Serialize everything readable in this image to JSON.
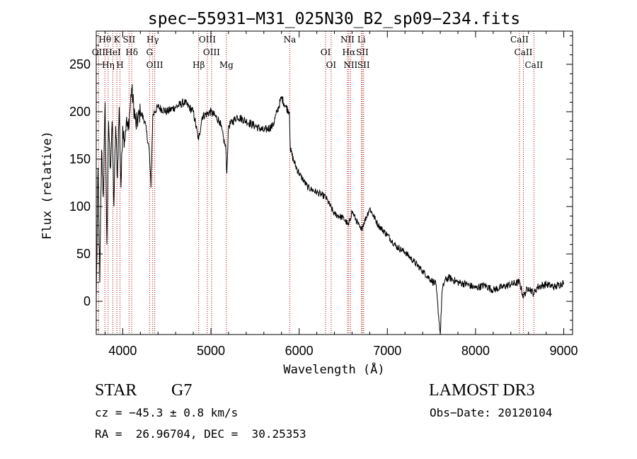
{
  "chart_data": {
    "type": "line",
    "title": "spec−55931−M31_025N30_B2_sp09−234.fits",
    "xlabel": "Wavelength (Å)",
    "ylabel": "Flux (relative)",
    "xlim": [
      3700,
      9100
    ],
    "ylim": [
      -35,
      285
    ],
    "x_ticks": [
      4000,
      5000,
      6000,
      7000,
      8000,
      9000
    ],
    "y_ticks": [
      0,
      50,
      100,
      150,
      200,
      250
    ],
    "grid": false,
    "line_color": "#000000",
    "marker_line_color": "#b00000",
    "series": [
      {
        "x": [
          3700,
          3720,
          3740,
          3760,
          3780,
          3800,
          3820,
          3840,
          3860,
          3880,
          3900,
          3920,
          3940,
          3960,
          3980,
          4000,
          4020,
          4040,
          4060,
          4080,
          4100,
          4150,
          4200,
          4250,
          4300,
          4320,
          4340,
          4360,
          4400,
          4500,
          4600,
          4700,
          4800,
          4860,
          4900,
          5000,
          5100,
          5170,
          5180,
          5200,
          5300,
          5400,
          5500,
          5600,
          5700,
          5750,
          5800,
          5850,
          5890,
          5900,
          5950,
          6000,
          6100,
          6200,
          6300,
          6400,
          6500,
          6560,
          6600,
          6700,
          6800,
          6900,
          7000,
          7100,
          7200,
          7300,
          7400,
          7500,
          7550,
          7600,
          7620,
          7650,
          7700,
          7800,
          7900,
          8000,
          8100,
          8200,
          8300,
          8400,
          8500,
          8540,
          8600,
          8660,
          8700,
          8800,
          8900,
          9000
        ],
        "y": [
          0,
          140,
          20,
          160,
          110,
          210,
          60,
          190,
          140,
          190,
          100,
          185,
          130,
          205,
          120,
          185,
          170,
          190,
          180,
          200,
          225,
          185,
          200,
          190,
          160,
          120,
          195,
          200,
          205,
          200,
          205,
          210,
          200,
          170,
          195,
          200,
          190,
          160,
          135,
          185,
          195,
          190,
          185,
          180,
          185,
          200,
          215,
          205,
          200,
          160,
          145,
          135,
          120,
          115,
          110,
          92,
          88,
          80,
          95,
          75,
          98,
          80,
          70,
          58,
          52,
          42,
          32,
          22,
          18,
          -35,
          10,
          22,
          25,
          20,
          18,
          14,
          17,
          12,
          15,
          18,
          20,
          5,
          15,
          8,
          15,
          18,
          15,
          20
        ]
      }
    ],
    "lines": [
      {
        "name": "Hθ",
        "x": 3798
      },
      {
        "name": "OII",
        "x": 3727
      },
      {
        "name": "Hη",
        "x": 3835
      },
      {
        "name": "K",
        "x": 3934
      },
      {
        "name": "HeI",
        "x": 3889
      },
      {
        "name": "H",
        "x": 3969
      },
      {
        "name": "SII",
        "x": 4072
      },
      {
        "name": "Hδ",
        "x": 4102
      },
      {
        "name": "OIII",
        "x": 4363
      },
      {
        "name": "Hγ",
        "x": 4340
      },
      {
        "name": "G",
        "x": 4304
      },
      {
        "name": "Hβ",
        "x": 4861
      },
      {
        "name": "OIII",
        "x": 4959
      },
      {
        "name": "OIII",
        "x": 5007
      },
      {
        "name": "Mg",
        "x": 5175
      },
      {
        "name": "Na",
        "x": 5894
      },
      {
        "name": "OI",
        "x": 6300
      },
      {
        "name": "OI",
        "x": 6363
      },
      {
        "name": "NII",
        "x": 6548
      },
      {
        "name": "Hα",
        "x": 6563
      },
      {
        "name": "NII",
        "x": 6583
      },
      {
        "name": "Li",
        "x": 6707
      },
      {
        "name": "SII",
        "x": 6716
      },
      {
        "name": "SII",
        "x": 6731
      },
      {
        "name": "CaII",
        "x": 8498
      },
      {
        "name": "CaII",
        "x": 8542
      },
      {
        "name": "CaII",
        "x": 8662
      }
    ]
  },
  "info": {
    "object_class": "STAR",
    "subclass": "G7",
    "survey": "LAMOST DR3",
    "cz": "cz = −45.3 ± 0.8 km/s",
    "obs_date": "Obs−Date: 20120104",
    "coords": "RA =  26.96704, DEC =  30.25353"
  }
}
